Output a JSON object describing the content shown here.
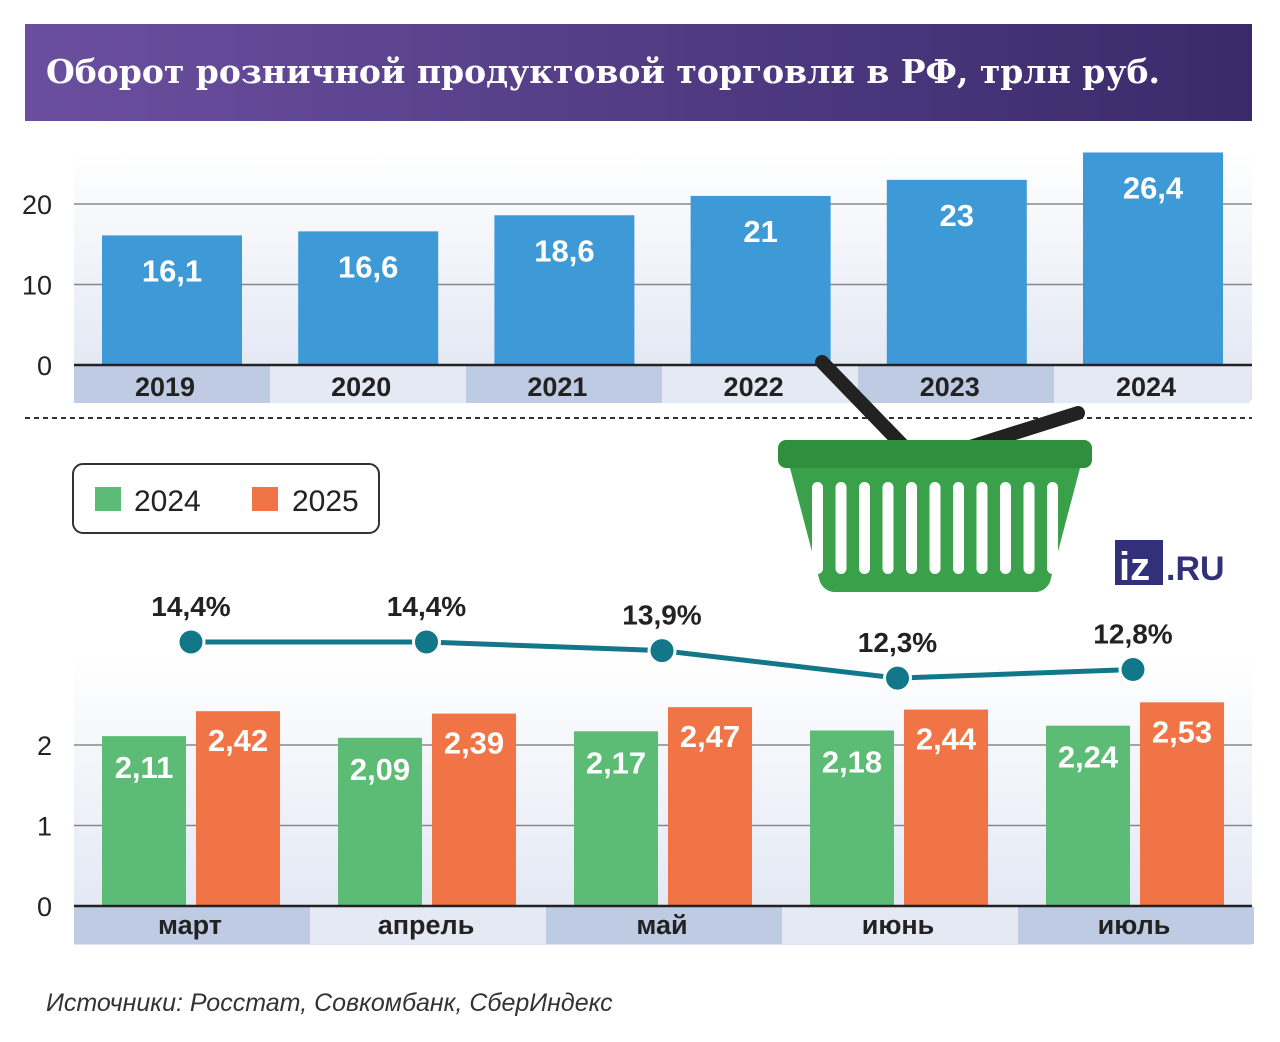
{
  "chart_data": [
    {
      "type": "bar",
      "title": "Оборот розничной продуктовой торговли в РФ, трлн руб.",
      "categories": [
        "2019",
        "2020",
        "2021",
        "2022",
        "2023",
        "2024"
      ],
      "values": [
        16.1,
        16.6,
        18.6,
        21,
        23,
        26.4
      ],
      "value_labels": [
        "16,1",
        "16,6",
        "18,6",
        "21",
        "23",
        "26,4"
      ],
      "yticks": [
        "0",
        "10",
        "20"
      ],
      "ylim": [
        0,
        27
      ],
      "grid": true,
      "color": "#3d9ad6"
    },
    {
      "type": "bar",
      "categories": [
        "март",
        "апрель",
        "май",
        "июнь",
        "июль"
      ],
      "series": [
        {
          "name": "2024",
          "values": [
            2.11,
            2.09,
            2.17,
            2.18,
            2.24
          ],
          "labels": [
            "2,11",
            "2,09",
            "2,17",
            "2,18",
            "2,24"
          ],
          "color": "#5cbb74"
        },
        {
          "name": "2025",
          "values": [
            2.42,
            2.39,
            2.47,
            2.44,
            2.53
          ],
          "labels": [
            "2,42",
            "2,39",
            "2,47",
            "2,44",
            "2,53"
          ],
          "color": "#f07445"
        }
      ],
      "yticks": [
        "0",
        "1",
        "2"
      ],
      "ylim": [
        0,
        2.6
      ],
      "grid": true,
      "legend": "top-left",
      "line": {
        "values": [
          14.4,
          14.4,
          13.9,
          12.3,
          12.8
        ],
        "labels": [
          "14,4%",
          "14,4%",
          "13,9%",
          "12,3%",
          "12,8%"
        ],
        "color": "#13778a"
      }
    }
  ],
  "source": "Источники: Росстат, Совкомбанк, СберИндекс",
  "logo": "IZ.RU",
  "colors": {
    "banner_start": "#6b4f9f",
    "banner_end": "#3a2a6b",
    "band_dark": "#bfcbe3",
    "band_light": "#e4e9f4"
  }
}
